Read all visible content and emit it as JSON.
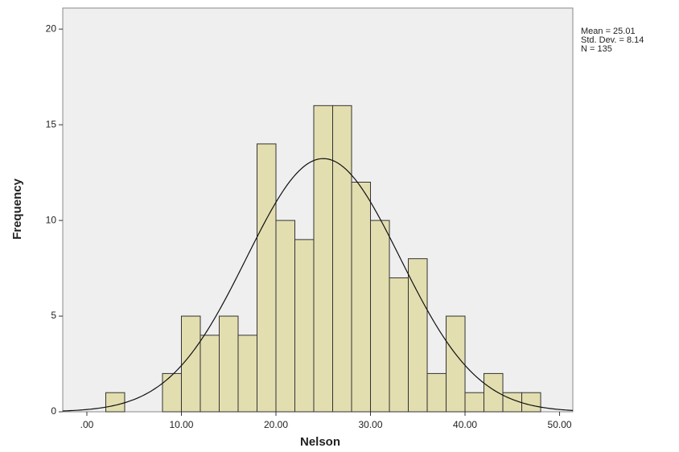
{
  "chart_data": {
    "type": "histogram",
    "x_label": "Nelson",
    "y_label": "Frequency",
    "bins": [
      2,
      4,
      6,
      8,
      10,
      12,
      14,
      16,
      18,
      20,
      22,
      24,
      26,
      28,
      30,
      32,
      34,
      36,
      38,
      40,
      42,
      44,
      46,
      48
    ],
    "counts": [
      1,
      0,
      0,
      2,
      5,
      4,
      5,
      4,
      14,
      10,
      9,
      16,
      16,
      12,
      10,
      7,
      8,
      2,
      5,
      1,
      2,
      1,
      1
    ],
    "color": "#e3deb0",
    "xlim": [
      -2.55,
      51.4
    ],
    "ylim": [
      0,
      21.1
    ],
    "xticks": [
      {
        "value": 0,
        "label": ".00"
      },
      {
        "value": 10,
        "label": "10.00"
      },
      {
        "value": 20,
        "label": "20.00"
      },
      {
        "value": 30,
        "label": "30.00"
      },
      {
        "value": 40,
        "label": "40.00"
      },
      {
        "value": 50,
        "label": "50.00"
      }
    ],
    "yticks": [
      0,
      5,
      10,
      15,
      20
    ],
    "normal_curve": {
      "mean": {
        "value": 25.01,
        "label": "Mean = 25.01"
      },
      "sd": {
        "value": 8.14,
        "label": "Std. Dev. = 8.14"
      },
      "n": {
        "value": 135,
        "label": "N = 135"
      }
    }
  }
}
